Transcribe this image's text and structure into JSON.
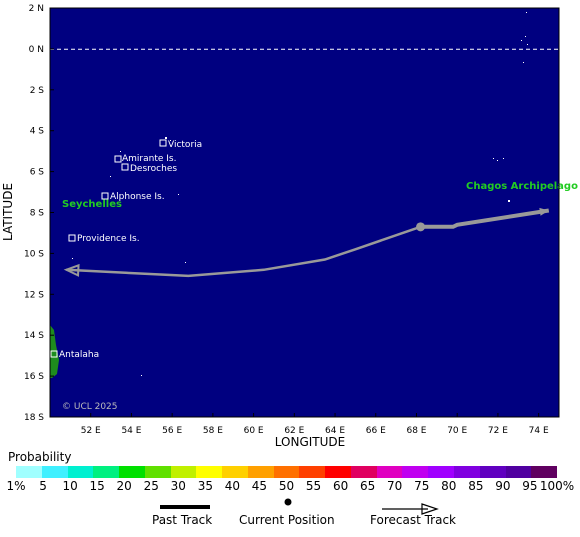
{
  "map": {
    "lat_labels": [
      "2 N",
      "0 N",
      "2 S",
      "4 S",
      "6 S",
      "8 S",
      "10 S",
      "12 S",
      "14 S",
      "16 S",
      "18 S"
    ],
    "lon_labels": [
      "52 E",
      "54 E",
      "56 E",
      "58 E",
      "60 E",
      "62 E",
      "64 E",
      "66 E",
      "68 E",
      "70 E",
      "72 E",
      "74 E"
    ],
    "xlabel": "LONGITUDE",
    "ylabel": "LATITUDE",
    "ocean_color": "#000080",
    "land_color": "#1e8c1e",
    "track_color": "#999999",
    "places": {
      "victoria": "Victoria",
      "amirante": "Amirante Is.",
      "desroches": "Desroches",
      "alphonse": "Alphonse Is.",
      "providence": "Providence Is.",
      "antalaha": "Antalaha"
    },
    "regions": {
      "seychelles": "Seychelles",
      "chagos": "Chagos Archipelago"
    },
    "copyright": "© UCL 2025",
    "past_track": [
      {
        "lon": 68.2,
        "lat": -8.7
      },
      {
        "lon": 69.8,
        "lat": -8.7
      },
      {
        "lon": 70.0,
        "lat": -8.6
      },
      {
        "lon": 74.5,
        "lat": -7.9
      }
    ],
    "current_position": {
      "lon": 68.2,
      "lat": -8.7
    },
    "forecast_track": [
      {
        "lon": 68.2,
        "lat": -8.7
      },
      {
        "lon": 65.0,
        "lat": -9.8
      },
      {
        "lon": 63.5,
        "lat": -10.3
      },
      {
        "lon": 60.5,
        "lat": -10.8
      },
      {
        "lon": 56.8,
        "lat": -11.1
      },
      {
        "lon": 50.8,
        "lat": -10.8
      }
    ]
  },
  "legend": {
    "title": "Probability",
    "colors": [
      "#a0ffff",
      "#40f0ff",
      "#00f0d0",
      "#00f080",
      "#00e000",
      "#60e000",
      "#c0f000",
      "#ffff00",
      "#ffd000",
      "#ffa000",
      "#ff7000",
      "#ff4000",
      "#ff0000",
      "#e00060",
      "#e000c0",
      "#c000f0",
      "#a000ff",
      "#8000e0",
      "#6000c0",
      "#5000a0",
      "#600060"
    ],
    "ticks": [
      "1%",
      "5",
      "10",
      "15",
      "20",
      "25",
      "30",
      "35",
      "40",
      "45",
      "50",
      "55",
      "60",
      "65",
      "70",
      "75",
      "80",
      "85",
      "90",
      "95",
      "100%"
    ],
    "past_track_label": "Past Track",
    "current_position_label": "Current Position",
    "forecast_track_label": "Forecast Track"
  }
}
